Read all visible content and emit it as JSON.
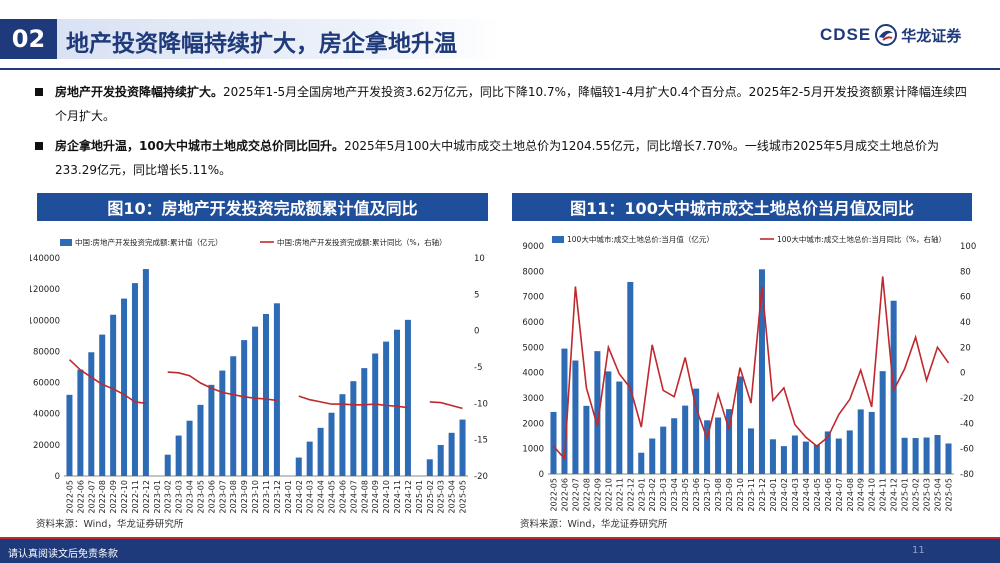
{
  "header": {
    "section_number": "02",
    "title": "地产投资降幅持续扩大，房企拿地升温",
    "logo_en": "CDSE",
    "logo_cn": "华龙证券"
  },
  "bullets": [
    {
      "bold": "房地产开发投资降幅持续扩大。",
      "text": "2025年1-5月全国房地产开发投资3.62万亿元，同比下降10.7%，降幅较1-4月扩大0.4个百分点。2025年2-5月开发投资额累计降幅连续四个月扩大。"
    },
    {
      "bold": "房企拿地升温，100大中城市土地成交总价同比回升。",
      "text": "2025年5月100大中城市成交土地总价为1204.55亿元，同比增长7.70%。一线城市2025年5月成交土地总价为233.29亿元，同比增长5.11%。"
    }
  ],
  "colors": {
    "bar": "#2e6bb5",
    "line": "#c0282d",
    "brand": "#1f3a7a",
    "panel_head": "#1f4e9b"
  },
  "chart_data": [
    {
      "type": "bar",
      "panel_title": "图10：房地产开发投资完成额累计值及同比",
      "source": "资料来源：Wind，华龙证券研究所",
      "categories": [
        "2022-05",
        "2022-06",
        "2022-07",
        "2022-08",
        "2022-09",
        "2022-10",
        "2022-11",
        "2022-12",
        "2023-01",
        "2023-02",
        "2023-03",
        "2023-04",
        "2023-05",
        "2023-06",
        "2023-07",
        "2023-08",
        "2023-09",
        "2023-10",
        "2023-11",
        "2023-12",
        "2024-01",
        "2024-02",
        "2024-03",
        "2024-04",
        "2024-05",
        "2024-06",
        "2024-07",
        "2024-08",
        "2024-09",
        "2024-10",
        "2024-11",
        "2024-12",
        "2025-01",
        "2025-02",
        "2025-03",
        "2025-04",
        "2025-05"
      ],
      "series": [
        {
          "name": "中国:房地产开发投资完成额:累计值（亿元）",
          "axis": "left",
          "kind": "bar",
          "values": [
            52134,
            68314,
            79462,
            90809,
            103559,
            113945,
            123863,
            132895,
            null,
            13669,
            25974,
            35514,
            45701,
            58550,
            67717,
            76900,
            87269,
            95922,
            104045,
            110913,
            null,
            11842,
            22082,
            30928,
            40632,
            52529,
            60877,
            69284,
            78680,
            86309,
            93948,
            100280,
            null,
            10720,
            19904,
            27730,
            36234
          ]
        },
        {
          "name": "中国:房地产开发投资完成额:累计同比（%，右轴）",
          "axis": "right",
          "kind": "line",
          "values": [
            -4.0,
            -5.4,
            -6.4,
            -7.4,
            -8.0,
            -8.8,
            -9.8,
            -10.0,
            null,
            -5.7,
            -5.8,
            -6.2,
            -7.2,
            -7.9,
            -8.5,
            -8.8,
            -9.1,
            -9.3,
            -9.4,
            -9.6,
            null,
            -9.0,
            -9.5,
            -9.8,
            -10.1,
            -10.1,
            -10.2,
            -10.2,
            -10.1,
            -10.3,
            -10.4,
            -10.6,
            null,
            -9.8,
            -9.9,
            -10.3,
            -10.7
          ]
        }
      ],
      "yleft": {
        "min": 0,
        "max": 140000,
        "ticks": [
          0,
          20000,
          40000,
          60000,
          80000,
          100000,
          120000,
          140000
        ]
      },
      "yright": {
        "min": -20,
        "max": 10,
        "ticks": [
          -20,
          -15,
          -10,
          -5,
          0,
          5,
          10
        ]
      },
      "legend": "top"
    },
    {
      "type": "bar",
      "panel_title": "图11：100大中城市成交土地总价当月值及同比",
      "source": "资料来源：Wind，华龙证券研究所",
      "categories": [
        "2022-05",
        "2022-06",
        "2022-07",
        "2022-08",
        "2022-09",
        "2022-10",
        "2022-11",
        "2022-12",
        "2023-01",
        "2023-02",
        "2023-03",
        "2023-04",
        "2023-05",
        "2023-06",
        "2023-07",
        "2023-08",
        "2023-09",
        "2023-10",
        "2023-11",
        "2023-12",
        "2024-01",
        "2024-02",
        "2024-03",
        "2024-04",
        "2024-05",
        "2024-06",
        "2024-07",
        "2024-08",
        "2024-09",
        "2024-10",
        "2024-11",
        "2024-12",
        "2025-01",
        "2025-02",
        "2025-03",
        "2025-04",
        "2025-05"
      ],
      "series": [
        {
          "name": "100大中城市:成交土地总价:当月值（亿元）",
          "axis": "left",
          "kind": "bar",
          "values": [
            2450,
            4950,
            4480,
            2690,
            4850,
            4050,
            3650,
            7580,
            840,
            1400,
            1870,
            2200,
            2700,
            3370,
            2120,
            2230,
            2560,
            3850,
            1800,
            8080,
            1370,
            1100,
            1520,
            1280,
            1150,
            1680,
            1400,
            1720,
            2550,
            2450,
            4060,
            6840,
            1430,
            1420,
            1440,
            1540,
            1205
          ]
        },
        {
          "name": "100大中城市:成交土地总价:当月同比（%，右轴）",
          "axis": "right",
          "kind": "line",
          "values": [
            -58,
            -68,
            68,
            -12,
            -42,
            20,
            -1,
            -12,
            -43,
            22,
            -14,
            -19,
            12,
            -28,
            -52,
            -17,
            -45,
            4,
            -24,
            68,
            -22,
            -12,
            -41,
            -51,
            -58,
            -51,
            -33,
            -21,
            2,
            -27,
            76,
            -14,
            3,
            28,
            -6,
            20,
            7.7
          ]
        }
      ],
      "yleft": {
        "min": 0,
        "max": 9000,
        "ticks": [
          0,
          1000,
          2000,
          3000,
          4000,
          5000,
          6000,
          7000,
          8000,
          9000
        ]
      },
      "yright": {
        "min": -80,
        "max": 100,
        "ticks": [
          -80,
          -60,
          -40,
          -20,
          0,
          20,
          40,
          60,
          80,
          100
        ]
      },
      "legend": "top"
    }
  ],
  "footer": {
    "disclaimer": "请认真阅读文后免责条款",
    "page": "11"
  }
}
